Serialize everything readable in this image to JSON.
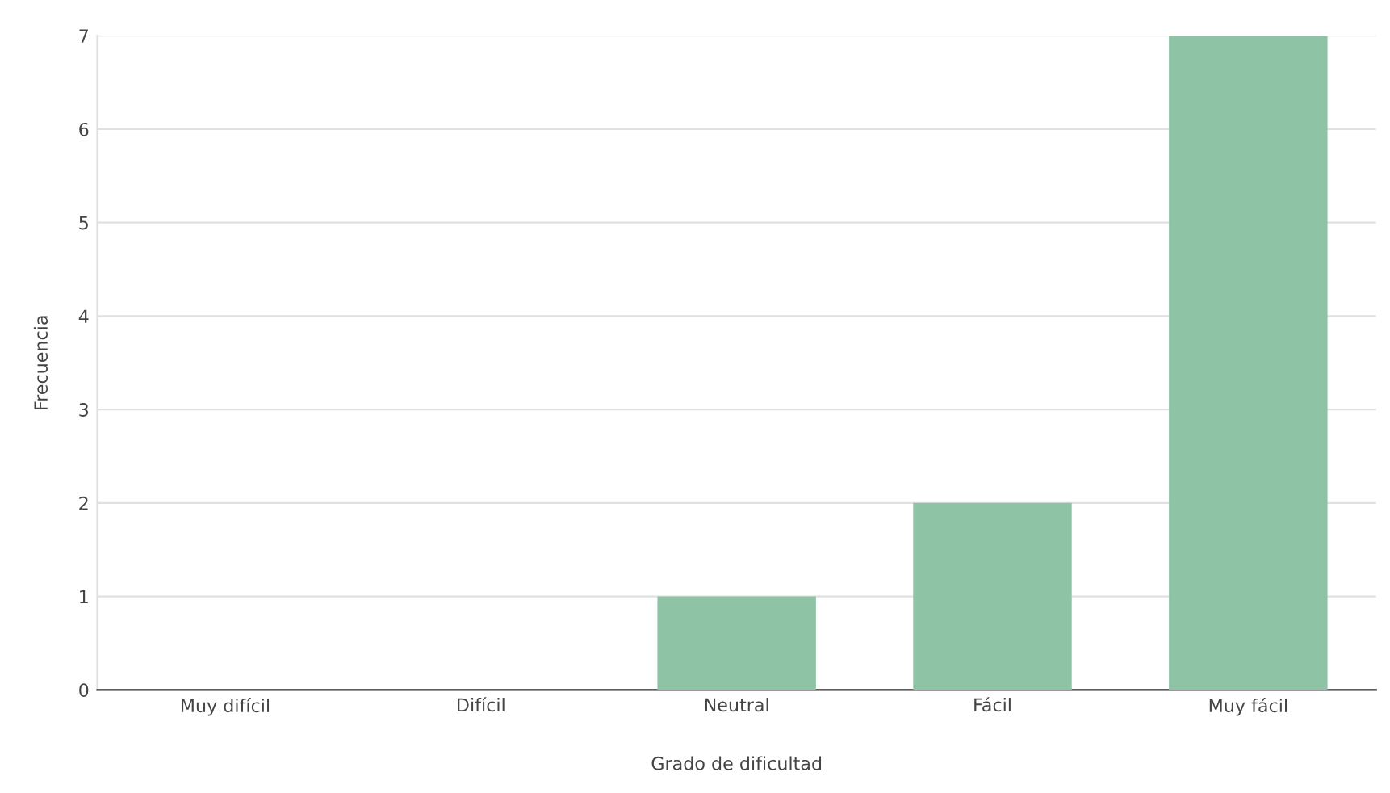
{
  "chart_data": {
    "type": "bar",
    "xlabel": "Grado de dificultad",
    "ylabel": "Frecuencia",
    "categories": [
      "Muy difícil",
      "Difícil",
      "Neutral",
      "Fácil",
      "Muy fácil"
    ],
    "values": [
      0,
      0,
      1,
      2,
      7
    ],
    "color": "#8ec3a6",
    "ylim": [
      0,
      7
    ],
    "yticks": [
      0,
      1,
      2,
      3,
      4,
      5,
      6,
      7
    ],
    "grid": "y",
    "legend": false
  }
}
